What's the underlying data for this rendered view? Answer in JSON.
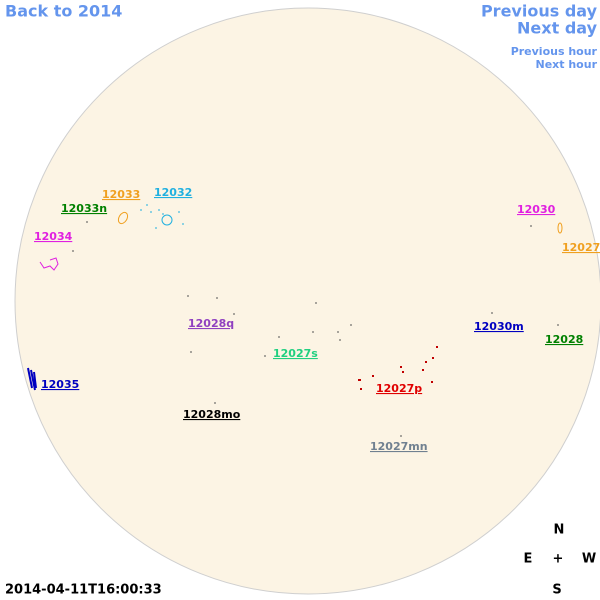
{
  "navigation": {
    "back": "Back to 2014",
    "previous_day": "Previous day",
    "next_day": "Next day",
    "previous_hour": "Previous hour",
    "next_hour": "Next hour"
  },
  "regions": [
    "12033",
    "12032",
    "12033n",
    "12034",
    "12030",
    "12027",
    "12028q",
    "12030m",
    "12028",
    "12027s",
    "12035",
    "12027p",
    "12028mo",
    "12027mn"
  ],
  "compass": {
    "north": "N",
    "east": "E",
    "center": "+",
    "west": "W",
    "south": "S"
  },
  "timestamp": "2014-04-11T16:00:33"
}
